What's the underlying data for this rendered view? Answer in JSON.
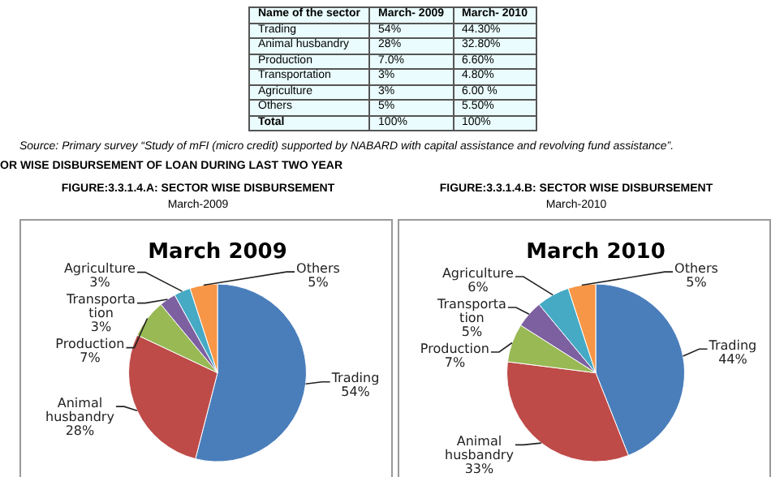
{
  "chart_data": [
    {
      "type": "other",
      "annotations": [
        "Name of the sector",
        "March- 2009",
        "March- 2010",
        "Trading",
        "54%",
        "44.30%",
        "Animal husbandry",
        "28%",
        "32.80%",
        "Production",
        "7.0%",
        "6.60%",
        "Transportation",
        "3%",
        "4.80%",
        "Agriculture",
        "3%",
        "6.00 %",
        "Others",
        "5%",
        "5.50%",
        "Total",
        "100%",
        "100%",
        "Source: Primary survey “Study of mFI (micro credit) supported by NABARD with capital assistance and revolving fund assistance”.",
        "OR WISE DISBURSEMENT OF LOAN DURING LAST TWO YEAR"
      ]
    },
    {
      "type": "pie",
      "title": "FIGURE:3.3.1.4.A: SECTOR WISE DISBURSEMENT",
      "subtitle": "March-2009",
      "annotations": [
        "March 2009"
      ],
      "categories": [
        "Trading",
        "Animal husbandry",
        "Production",
        "Transportation",
        "Agriculture",
        "Others"
      ],
      "values": [
        54,
        28,
        7,
        3,
        3,
        5
      ],
      "value_labels": [
        "54%",
        "28%",
        "7%",
        "3%",
        "3%",
        "5%"
      ],
      "colors": [
        "#4a7ebb",
        "#be4b48",
        "#98b954",
        "#7d60a0",
        "#46aac5",
        "#f79646"
      ],
      "legend": false
    },
    {
      "type": "pie",
      "title": "FIGURE:3.3.1.4.B: SECTOR WISE DISBURSEMENT",
      "subtitle": "March-2010",
      "annotations": [
        "March 2010"
      ],
      "categories": [
        "Trading",
        "Animal husbandry",
        "Production",
        "Transportation",
        "Agriculture",
        "Others"
      ],
      "values": [
        44,
        33,
        7,
        5,
        6,
        5
      ],
      "value_labels": [
        "44%",
        "33%",
        "7%",
        "5%",
        "6%",
        "5%"
      ],
      "colors": [
        "#4a7ebb",
        "#be4b48",
        "#98b954",
        "#7d60a0",
        "#46aac5",
        "#f79646"
      ],
      "legend": false
    }
  ]
}
